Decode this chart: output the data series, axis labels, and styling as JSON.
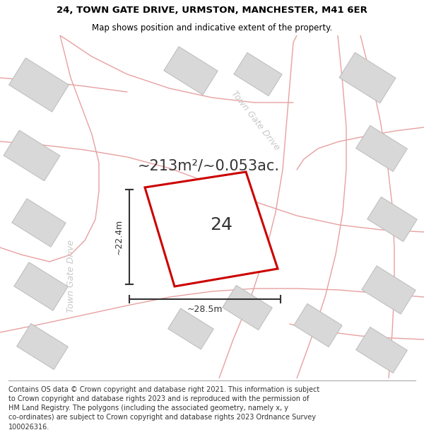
{
  "title_line1": "24, TOWN GATE DRIVE, URMSTON, MANCHESTER, M41 6ER",
  "title_line2": "Map shows position and indicative extent of the property.",
  "footer_text": "Contains OS data © Crown copyright and database right 2021. This information is subject\nto Crown copyright and database rights 2023 and is reproduced with the permission of\nHM Land Registry. The polygons (including the associated geometry, namely x, y\nco-ordinates) are subject to Crown copyright and database rights 2023 Ordnance Survey\n100026316.",
  "area_label": "~213m²/~0.053ac.",
  "number_label": "24",
  "dim_width": "~28.5m",
  "dim_height": "~22.4m",
  "road_label_diag": "Town Gate Drive",
  "road_label_vert": "Town Gate Drive",
  "bg_color": "#ffffff",
  "polygon_fill": "#ffffff",
  "polygon_edge": "#cc0000",
  "road_color": "#e8a0a0",
  "building_fill": "#d8d8d8",
  "building_edge": "#bbbbbb",
  "dim_color": "#333333",
  "road_label_color": "#c8c8c8",
  "title_fontsize": 9.5,
  "subtitle_fontsize": 8.5,
  "footer_fontsize": 7.0,
  "area_fontsize": 15,
  "number_fontsize": 18,
  "dim_fontsize": 9,
  "road_label_fontsize": 9
}
